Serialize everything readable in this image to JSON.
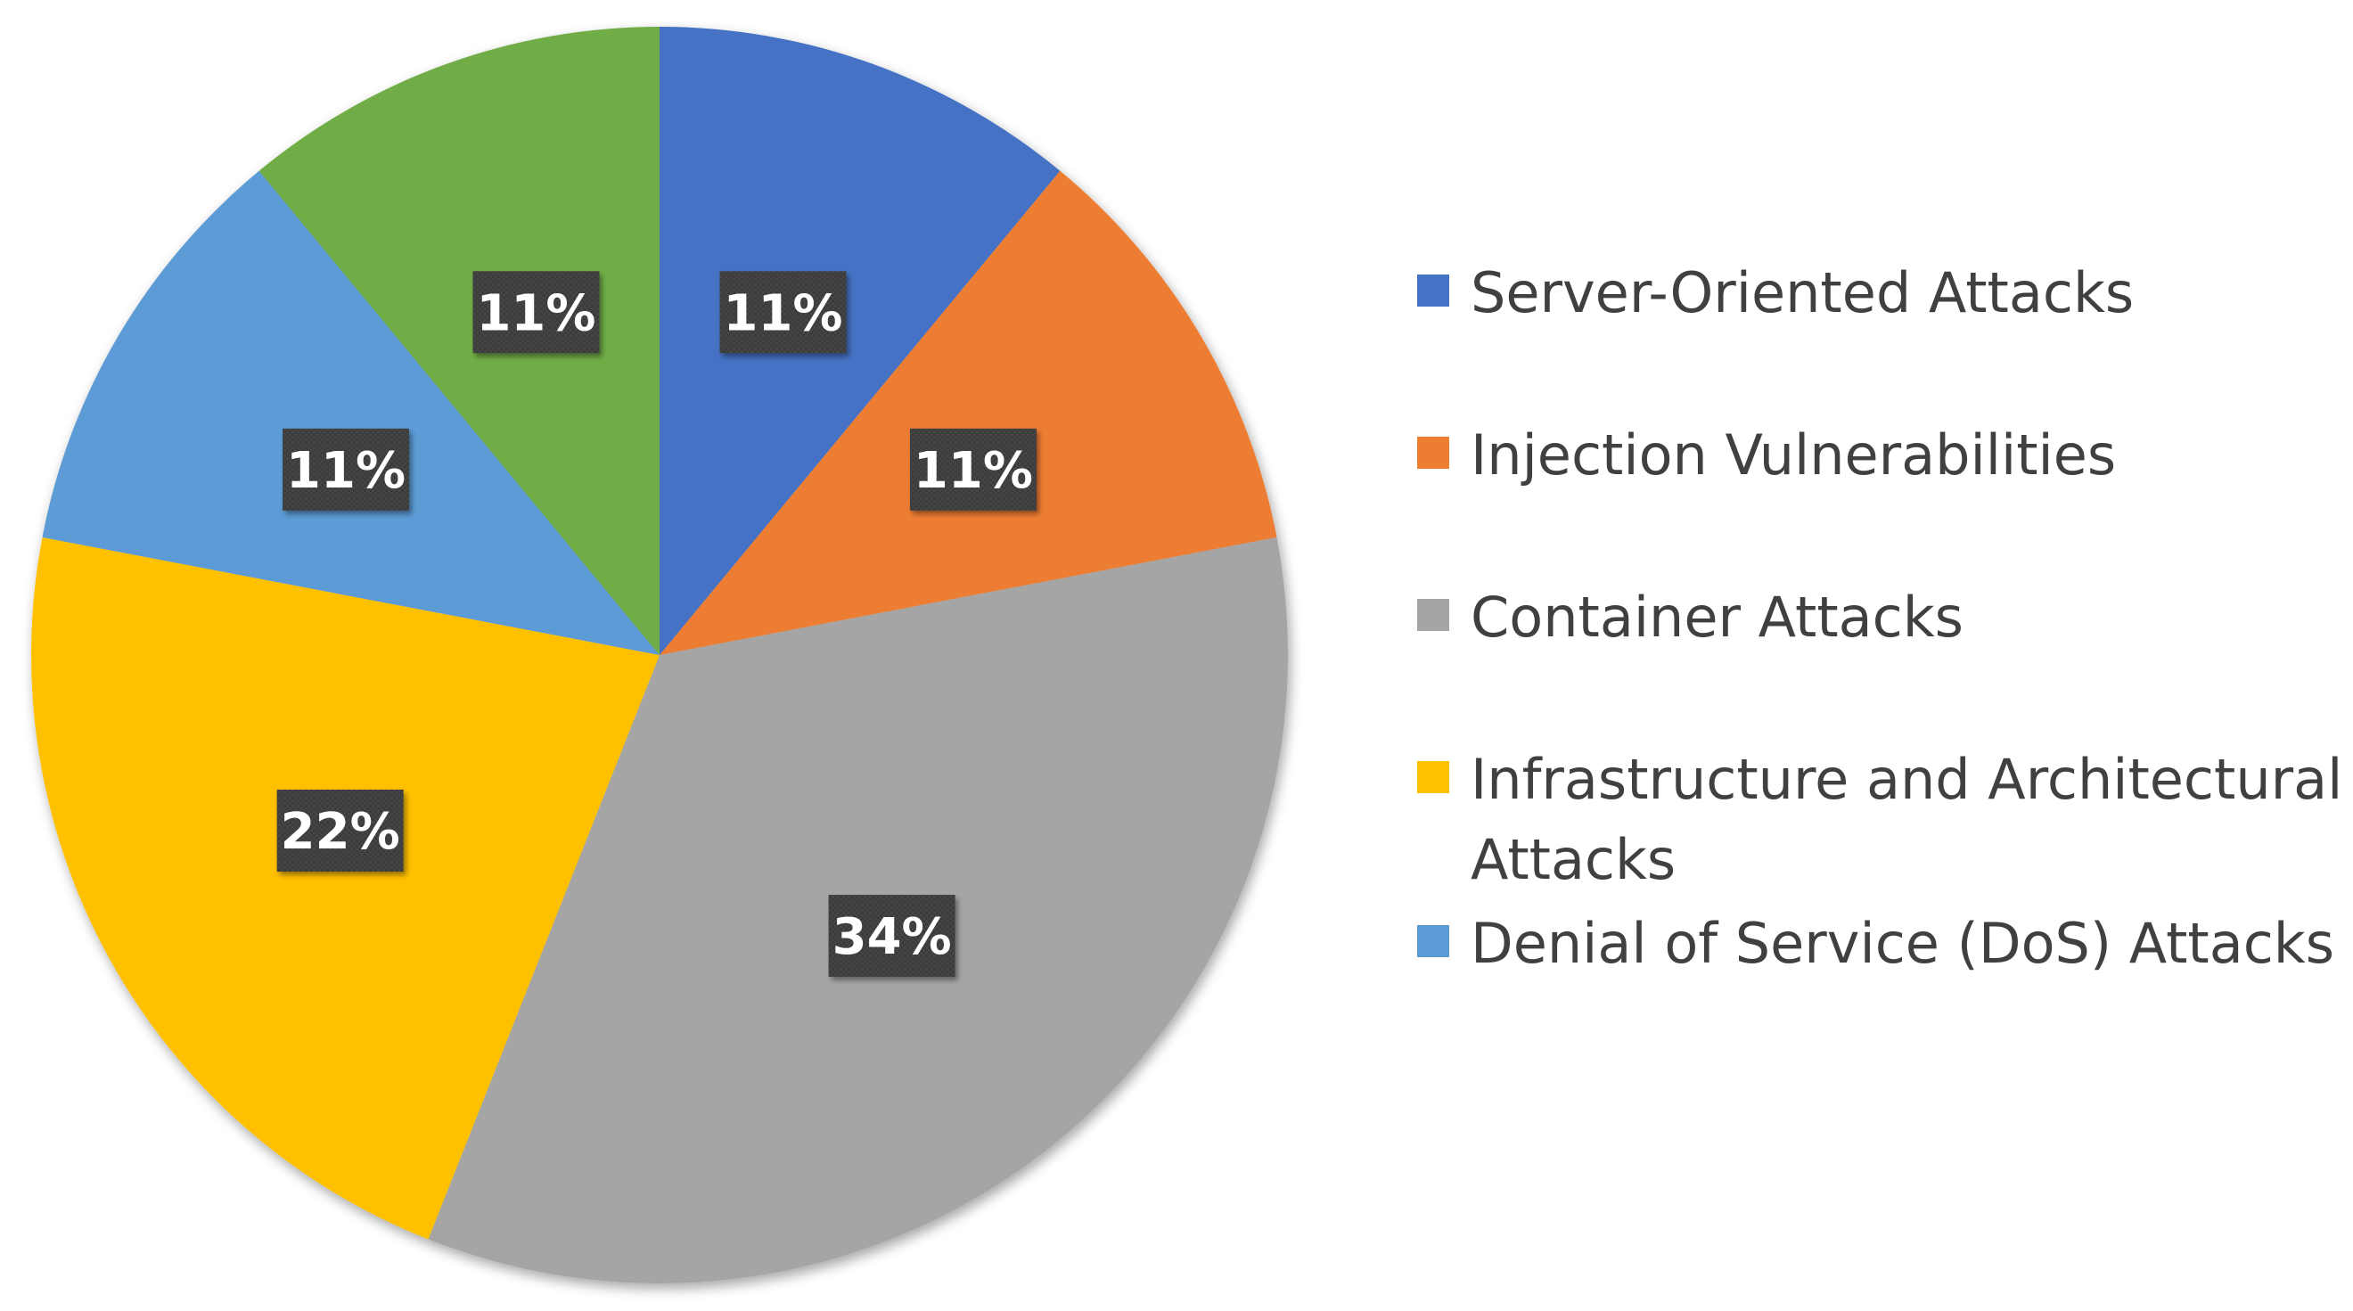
{
  "chart_data": {
    "type": "pie",
    "title": "",
    "start_angle_deg": 0,
    "direction": "clockwise",
    "legend_position": "right",
    "label_style": "dark-box",
    "categories": [
      "Server-Oriented Attacks",
      "Injection Vulnerabilities",
      "Container Attacks",
      "Infrastructure and Architectural Attacks",
      "Denial of Service (DoS) Attacks",
      ""
    ],
    "values": [
      11,
      11,
      34,
      22,
      11,
      11
    ],
    "labels": [
      "11%",
      "11%",
      "34%",
      "22%",
      "11%",
      "11%"
    ],
    "colors": [
      "#4472C4",
      "#ED7D31",
      "#A5A5A5",
      "#FFC000",
      "#5B9BD5",
      "#70AD47"
    ],
    "legend": [
      {
        "name": "Server-Oriented Attacks",
        "lines": [
          "Server-Oriented Attacks"
        ],
        "color": "#4472C4"
      },
      {
        "name": "Injection Vulnerabilities",
        "lines": [
          "Injection Vulnerabilities"
        ],
        "color": "#ED7D31"
      },
      {
        "name": "Container Attacks",
        "lines": [
          "Container Attacks"
        ],
        "color": "#A5A5A5"
      },
      {
        "name": "Infrastructure and Architectural Attacks",
        "lines": [
          "Infrastructure and Architectural",
          "Attacks"
        ],
        "color": "#FFC000"
      },
      {
        "name": "Denial of Service (DoS) Attacks",
        "lines": [
          "Denial of Service (DoS) Attacks"
        ],
        "color": "#5B9BD5"
      }
    ]
  }
}
